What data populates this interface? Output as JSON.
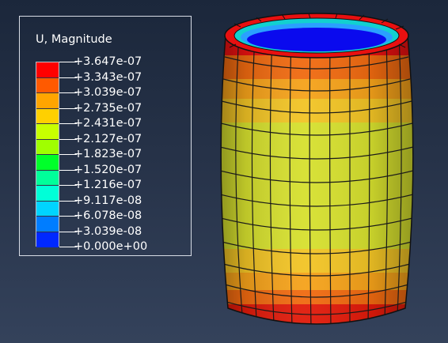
{
  "legend": {
    "title": "U, Magnitude",
    "values": [
      "+3.647e-07",
      "+3.343e-07",
      "+3.039e-07",
      "+2.735e-07",
      "+2.431e-07",
      "+2.127e-07",
      "+1.823e-07",
      "+1.520e-07",
      "+1.216e-07",
      "+9.117e-08",
      "+6.078e-08",
      "+3.039e-08",
      "+0.000e+00"
    ],
    "band_colors": [
      "#ff0000",
      "#ff5a00",
      "#ffa500",
      "#ffd000",
      "#c8ff00",
      "#a0ff00",
      "#00ff2a",
      "#00ff9a",
      "#00ffd8",
      "#00d4ff",
      "#007dff",
      "#0028ff"
    ]
  },
  "model": {
    "part": "cylindrical-shell",
    "contour_colors": {
      "rim_top": "#e81010",
      "band_red": "#e01a0a",
      "band_orange": "#f06a10",
      "band_amber": "#f5a21a",
      "band_yellow_orange": "#f2c425",
      "body_yellow": "#d6e02e",
      "inner_top": "#12d0d0",
      "inner_mid": "#2aa0ff",
      "inner_deep": "#0a0aee"
    }
  }
}
